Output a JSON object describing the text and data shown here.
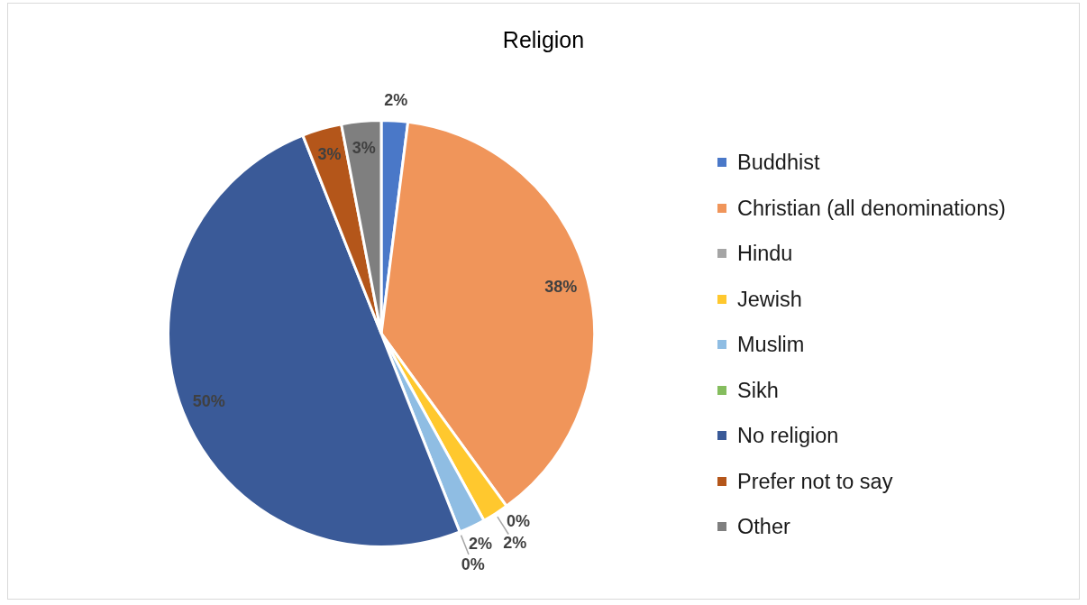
{
  "chart_data": {
    "type": "pie",
    "title": "Religion",
    "categories": [
      "Buddhist",
      "Christian (all denominations)",
      "Hindu",
      "Jewish",
      "Muslim",
      "Sikh",
      "No religion",
      "Prefer not to say",
      "Other"
    ],
    "values": [
      2,
      38,
      0,
      2,
      2,
      0,
      50,
      3,
      3
    ],
    "value_labels": [
      "2%",
      "38%",
      "0%",
      "2%",
      "2%",
      "0%",
      "50%",
      "3%",
      "3%"
    ],
    "colors": [
      "#4a78c8",
      "#f0955a",
      "#a5a5a5",
      "#ffc82e",
      "#8fbde3",
      "#85bd5e",
      "#3a5a98",
      "#b4561a",
      "#7f7f7f"
    ],
    "legend": "right"
  }
}
